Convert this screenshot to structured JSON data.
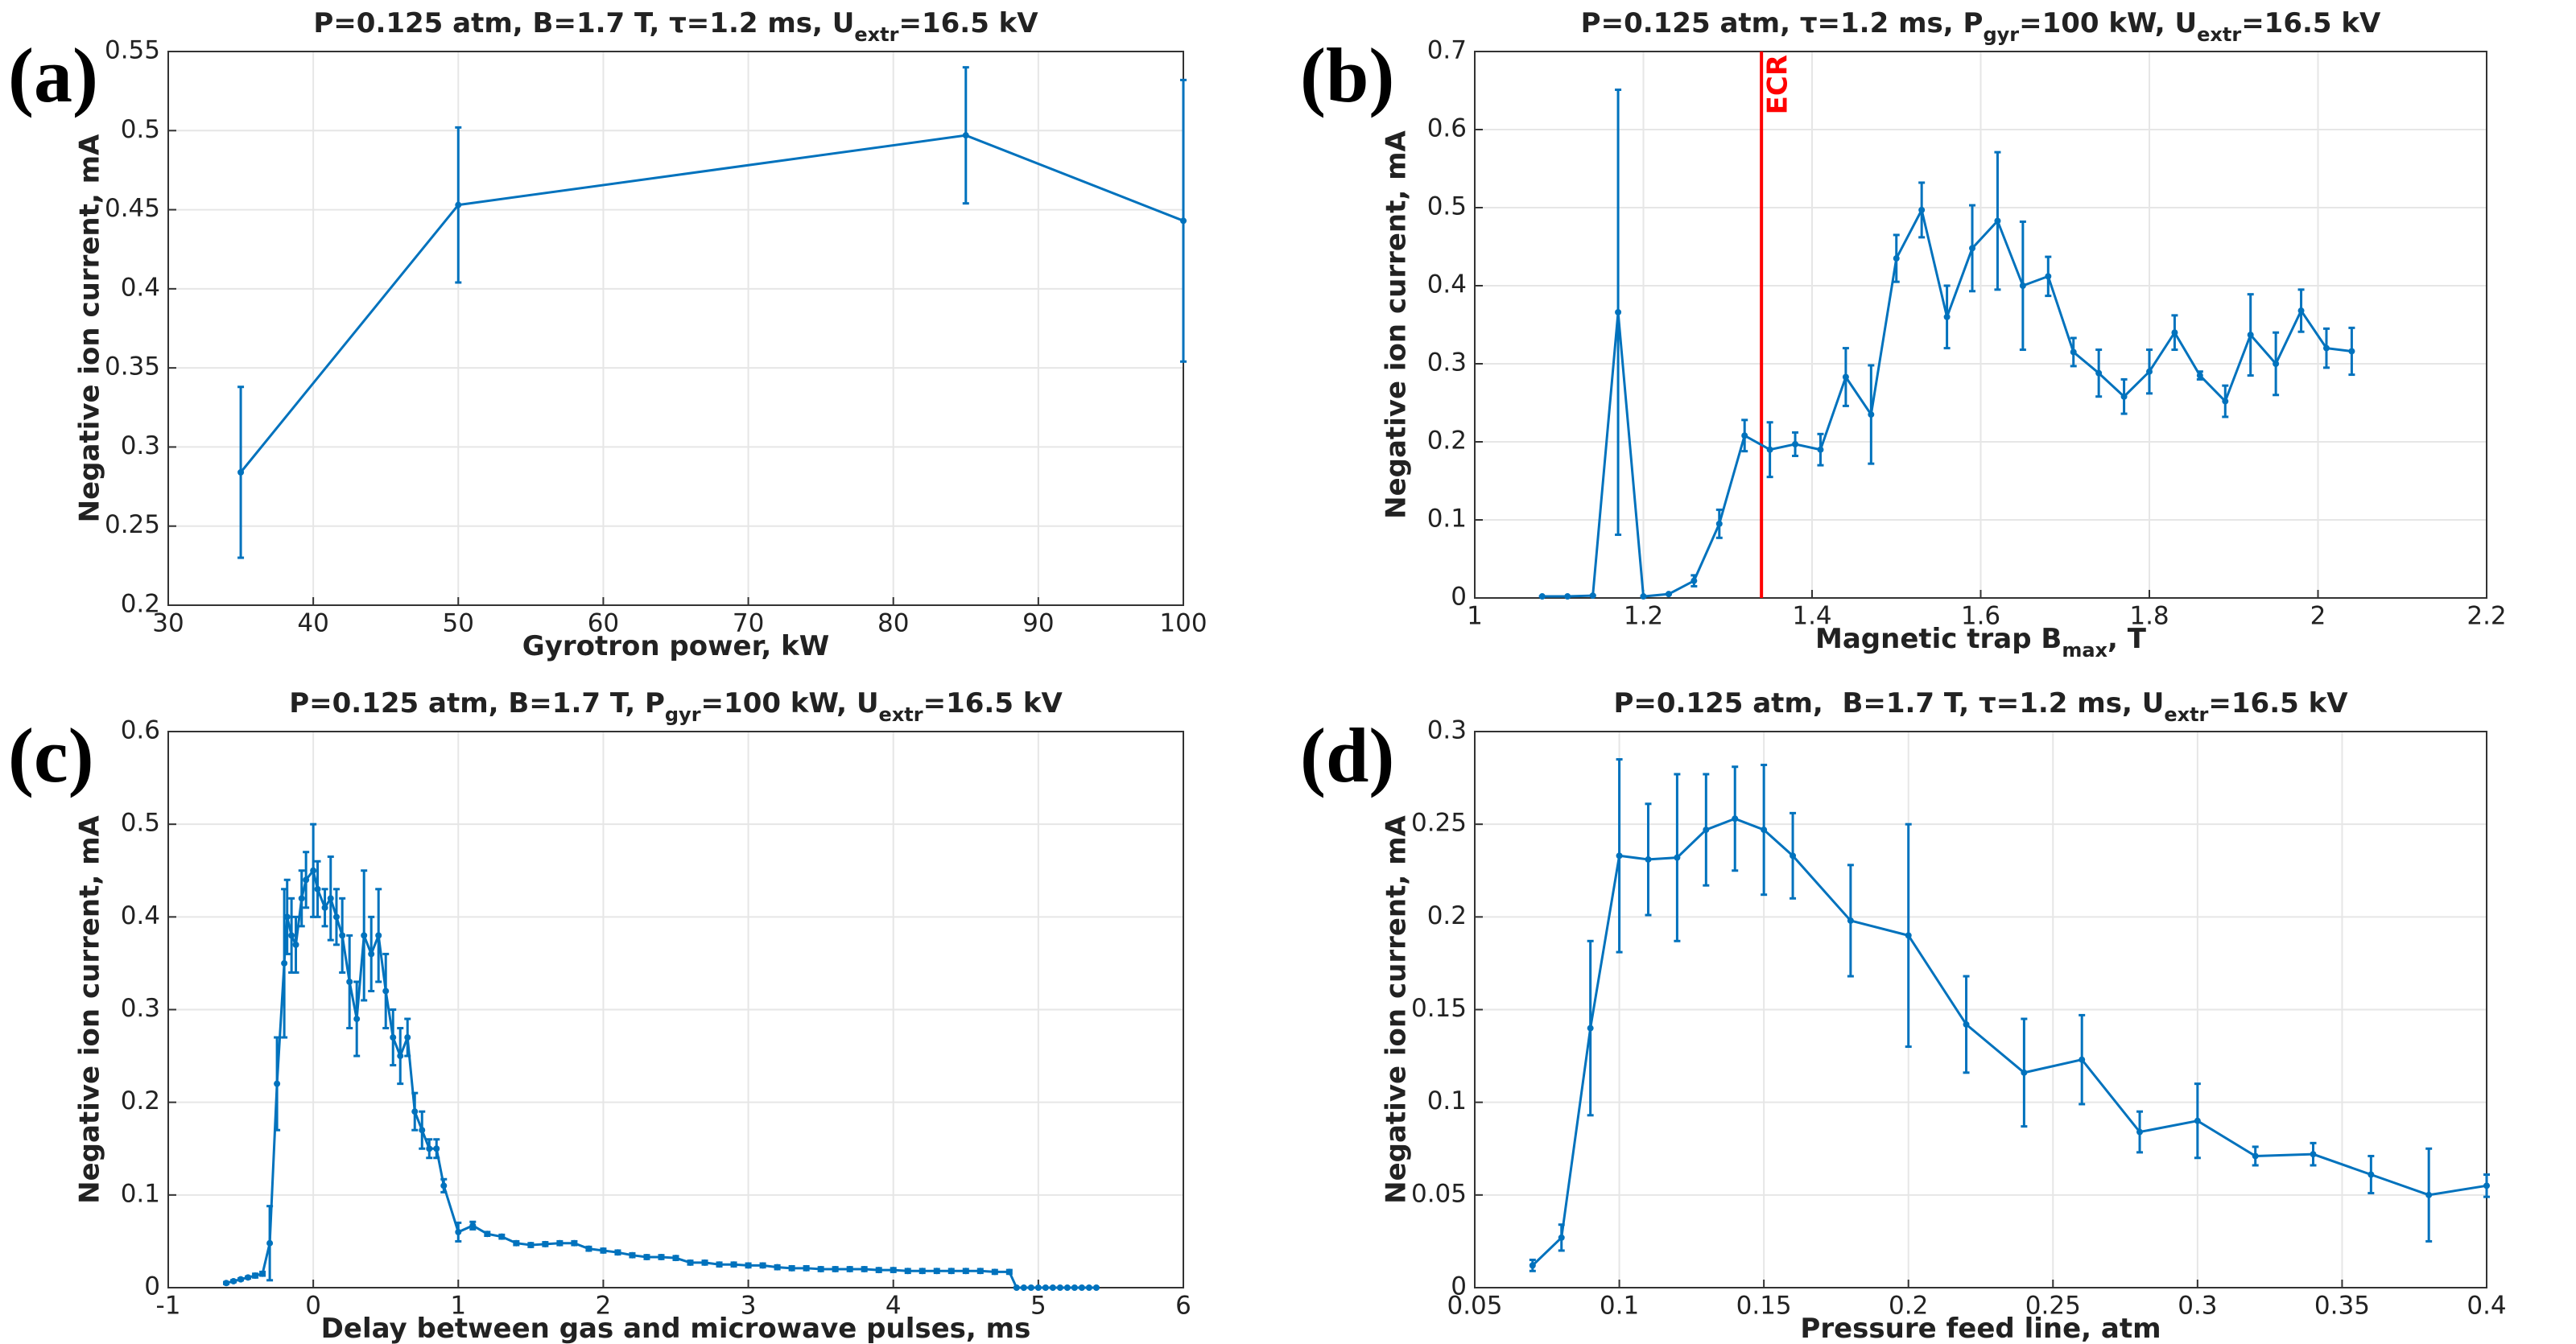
{
  "chart_data": [
    {
      "type": "line",
      "label": "(a)",
      "title": [
        {
          "text": "P=0.125 atm, B=1.7 T, τ=1.2 ms, U"
        },
        {
          "text": "extr",
          "sub": true
        },
        {
          "text": "=16.5 kV"
        }
      ],
      "xlabel": [
        {
          "text": "Gyrotron power, kW"
        }
      ],
      "ylabel": "Negative ion current, mA",
      "color": "#0072bd",
      "grid": true,
      "x": [
        35,
        50,
        85,
        100
      ],
      "values": [
        0.284,
        0.453,
        0.497,
        0.443
      ],
      "errors": [
        0.054,
        0.049,
        0.043,
        0.089
      ],
      "xlim": [
        30,
        100
      ],
      "xticks": [
        30,
        40,
        50,
        60,
        70,
        80,
        90,
        100
      ],
      "ylim": [
        0.2,
        0.55
      ],
      "yticks": [
        0.2,
        0.25,
        0.3,
        0.35,
        0.4,
        0.45,
        0.5,
        0.55
      ]
    },
    {
      "type": "line",
      "label": "(b)",
      "title": [
        {
          "text": "P=0.125 atm, τ=1.2 ms, P"
        },
        {
          "text": "gyr",
          "sub": true
        },
        {
          "text": "=100 kW, U"
        },
        {
          "text": "extr",
          "sub": true
        },
        {
          "text": "=16.5 kV"
        }
      ],
      "xlabel": [
        {
          "text": "Magnetic trap B"
        },
        {
          "text": "max",
          "sub": true
        },
        {
          "text": ", T"
        }
      ],
      "ylabel": "Negative ion current, mA",
      "color": "#0072bd",
      "grid": true,
      "x": [
        1.08,
        1.11,
        1.14,
        1.17,
        1.2,
        1.23,
        1.26,
        1.29,
        1.32,
        1.35,
        1.38,
        1.41,
        1.44,
        1.47,
        1.5,
        1.53,
        1.56,
        1.59,
        1.62,
        1.65,
        1.68,
        1.71,
        1.74,
        1.77,
        1.8,
        1.83,
        1.86,
        1.89,
        1.92,
        1.95,
        1.98,
        2.01,
        2.04
      ],
      "values": [
        0.002,
        0.002,
        0.003,
        0.366,
        0.002,
        0.005,
        0.022,
        0.095,
        0.208,
        0.19,
        0.197,
        0.19,
        0.283,
        0.235,
        0.435,
        0.497,
        0.36,
        0.448,
        0.483,
        0.4,
        0.412,
        0.315,
        0.288,
        0.258,
        0.29,
        0.34,
        0.285,
        0.252,
        0.337,
        0.3,
        0.368,
        0.32,
        0.316
      ],
      "errors": [
        0,
        0,
        0,
        0.285,
        0,
        0,
        0.007,
        0.018,
        0.02,
        0.035,
        0.015,
        0.02,
        0.037,
        0.063,
        0.03,
        0.035,
        0.04,
        0.055,
        0.088,
        0.082,
        0.025,
        0.018,
        0.03,
        0.022,
        0.028,
        0.022,
        0.005,
        0.02,
        0.052,
        0.04,
        0.027,
        0.025,
        0.03
      ],
      "vline": {
        "x": 1.34,
        "label": "ECR",
        "color": "#ff0000"
      },
      "xlim": [
        1,
        2.2
      ],
      "xticks": [
        1,
        1.2,
        1.4,
        1.6,
        1.8,
        2,
        2.2
      ],
      "ylim": [
        0,
        0.7
      ],
      "yticks": [
        0,
        0.1,
        0.2,
        0.3,
        0.4,
        0.5,
        0.6,
        0.7
      ]
    },
    {
      "type": "line",
      "label": "(c)",
      "title": [
        {
          "text": "P=0.125 atm, B=1.7 T, P"
        },
        {
          "text": "gyr",
          "sub": true
        },
        {
          "text": "=100 kW, U"
        },
        {
          "text": "extr",
          "sub": true
        },
        {
          "text": "=16.5 kV"
        }
      ],
      "xlabel": [
        {
          "text": "Delay between gas and microwave pulses, ms"
        }
      ],
      "ylabel": "Negative ion current, mA",
      "color": "#0072bd",
      "grid": true,
      "x": [
        -0.6,
        -0.55,
        -0.5,
        -0.45,
        -0.4,
        -0.35,
        -0.3,
        -0.25,
        -0.2,
        -0.18,
        -0.15,
        -0.12,
        -0.08,
        -0.05,
        0,
        0.03,
        0.08,
        0.12,
        0.16,
        0.2,
        0.25,
        0.3,
        0.35,
        0.4,
        0.45,
        0.5,
        0.55,
        0.6,
        0.65,
        0.7,
        0.75,
        0.8,
        0.85,
        0.9,
        1,
        1.1,
        1.2,
        1.3,
        1.4,
        1.5,
        1.6,
        1.7,
        1.8,
        1.9,
        2,
        2.1,
        2.2,
        2.3,
        2.4,
        2.5,
        2.6,
        2.7,
        2.8,
        2.9,
        3,
        3.1,
        3.2,
        3.3,
        3.4,
        3.5,
        3.6,
        3.7,
        3.8,
        3.9,
        4,
        4.1,
        4.2,
        4.3,
        4.4,
        4.5,
        4.6,
        4.7,
        4.8,
        4.85,
        4.9,
        4.95,
        5,
        5.05,
        5.1,
        5.15,
        5.2,
        5.25,
        5.3,
        5.35,
        5.4
      ],
      "values": [
        0.005,
        0.007,
        0.009,
        0.011,
        0.013,
        0.015,
        0.048,
        0.22,
        0.35,
        0.4,
        0.38,
        0.37,
        0.42,
        0.44,
        0.45,
        0.43,
        0.41,
        0.42,
        0.4,
        0.38,
        0.33,
        0.29,
        0.38,
        0.36,
        0.38,
        0.32,
        0.27,
        0.25,
        0.27,
        0.19,
        0.17,
        0.15,
        0.15,
        0.11,
        0.06,
        0.067,
        0.058,
        0.055,
        0.048,
        0.046,
        0.047,
        0.048,
        0.048,
        0.042,
        0.04,
        0.038,
        0.035,
        0.033,
        0.033,
        0.032,
        0.027,
        0.027,
        0.025,
        0.025,
        0.024,
        0.024,
        0.022,
        0.021,
        0.021,
        0.02,
        0.02,
        0.02,
        0.02,
        0.019,
        0.019,
        0.018,
        0.018,
        0.018,
        0.018,
        0.018,
        0.018,
        0.017,
        0.017,
        0,
        0,
        0,
        0,
        0,
        0,
        0,
        0,
        0,
        0,
        0,
        0
      ],
      "errors": [
        0.001,
        0.001,
        0.001,
        0.001,
        0.002,
        0.002,
        0.04,
        0.05,
        0.08,
        0.04,
        0.04,
        0.03,
        0.03,
        0.03,
        0.05,
        0.03,
        0.02,
        0.045,
        0.03,
        0.04,
        0.05,
        0.04,
        0.07,
        0.04,
        0.05,
        0.04,
        0.03,
        0.03,
        0.02,
        0.02,
        0.02,
        0.01,
        0.01,
        0.007,
        0.01,
        0.004,
        0.002,
        0.002,
        0.002,
        0.002,
        0.002,
        0.002,
        0.002,
        0.002,
        0.002,
        0.002,
        0.002,
        0.002,
        0.002,
        0.002,
        0.002,
        0.002,
        0.002,
        0.002,
        0.002,
        0.002,
        0.002,
        0.002,
        0.002,
        0.002,
        0.002,
        0.002,
        0.002,
        0.002,
        0.002,
        0.002,
        0.002,
        0.002,
        0.002,
        0.002,
        0.002,
        0.002,
        0.002,
        0,
        0,
        0,
        0,
        0,
        0,
        0,
        0,
        0,
        0,
        0,
        0
      ],
      "xlim": [
        -1,
        6
      ],
      "xticks": [
        -1,
        0,
        1,
        2,
        3,
        4,
        5,
        6
      ],
      "ylim": [
        0,
        0.6
      ],
      "yticks": [
        0,
        0.1,
        0.2,
        0.3,
        0.4,
        0.5,
        0.6
      ]
    },
    {
      "type": "line",
      "label": "(d)",
      "title": [
        {
          "text": "P=0.125 atm,  B=1.7 T, τ=1.2 ms, U"
        },
        {
          "text": "extr",
          "sub": true
        },
        {
          "text": "=16.5 kV"
        }
      ],
      "xlabel": [
        {
          "text": "Pressure feed line, atm"
        }
      ],
      "ylabel": "Negative ion current, mA",
      "color": "#0072bd",
      "grid": true,
      "x": [
        0.07,
        0.08,
        0.09,
        0.1,
        0.11,
        0.12,
        0.13,
        0.14,
        0.15,
        0.16,
        0.18,
        0.2,
        0.22,
        0.24,
        0.26,
        0.28,
        0.3,
        0.32,
        0.34,
        0.36,
        0.38,
        0.4
      ],
      "values": [
        0.012,
        0.027,
        0.14,
        0.233,
        0.231,
        0.232,
        0.247,
        0.253,
        0.247,
        0.233,
        0.198,
        0.19,
        0.142,
        0.116,
        0.123,
        0.084,
        0.09,
        0.071,
        0.072,
        0.061,
        0.05,
        0.055
      ],
      "errors": [
        0.003,
        0.007,
        0.047,
        0.052,
        0.03,
        0.045,
        0.03,
        0.028,
        0.035,
        0.023,
        0.03,
        0.06,
        0.026,
        0.029,
        0.024,
        0.011,
        0.02,
        0.005,
        0.006,
        0.01,
        0.025,
        0.006
      ],
      "xlim": [
        0.05,
        0.4
      ],
      "xticks": [
        0.05,
        0.1,
        0.15,
        0.2,
        0.25,
        0.3,
        0.35,
        0.4
      ],
      "ylim": [
        0,
        0.3
      ],
      "yticks": [
        0,
        0.05,
        0.1,
        0.15,
        0.2,
        0.25,
        0.3
      ]
    }
  ]
}
